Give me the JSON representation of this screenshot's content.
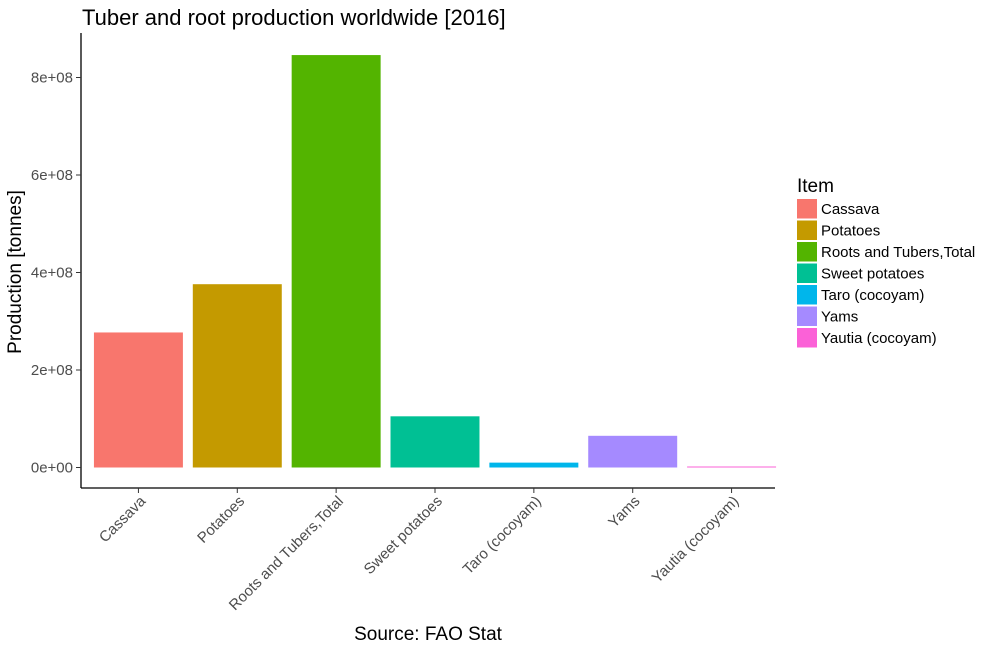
{
  "chart_data": {
    "type": "bar",
    "title": "Tuber and root production worldwide [2016]",
    "xlabel": "Source: FAO Stat",
    "ylabel": "Production [tonnes]",
    "categories": [
      "Cassava",
      "Potatoes",
      "Roots and Tubers,Total",
      "Sweet potatoes",
      "Taro (cocoyam)",
      "Yams",
      "Yautia (cocoyam)"
    ],
    "values": [
      277000000,
      376000000,
      846000000,
      105000000,
      10000000,
      65000000,
      500000
    ],
    "colors": [
      "#F8766D",
      "#C49A00",
      "#53B400",
      "#00C094",
      "#00B6EB",
      "#A58AFF",
      "#FB61D7"
    ],
    "ylim": [
      0,
      890000000
    ],
    "yticks": [
      0,
      200000000,
      400000000,
      600000000,
      800000000
    ],
    "ytick_labels": [
      "0e+00",
      "2e+08",
      "4e+08",
      "6e+08",
      "8e+08"
    ],
    "grid": false,
    "legend": {
      "title": "Item",
      "position": "right",
      "entries": [
        "Cassava",
        "Potatoes",
        "Roots and Tubers,Total",
        "Sweet potatoes",
        "Taro (cocoyam)",
        "Yams",
        "Yautia (cocoyam)"
      ]
    }
  }
}
